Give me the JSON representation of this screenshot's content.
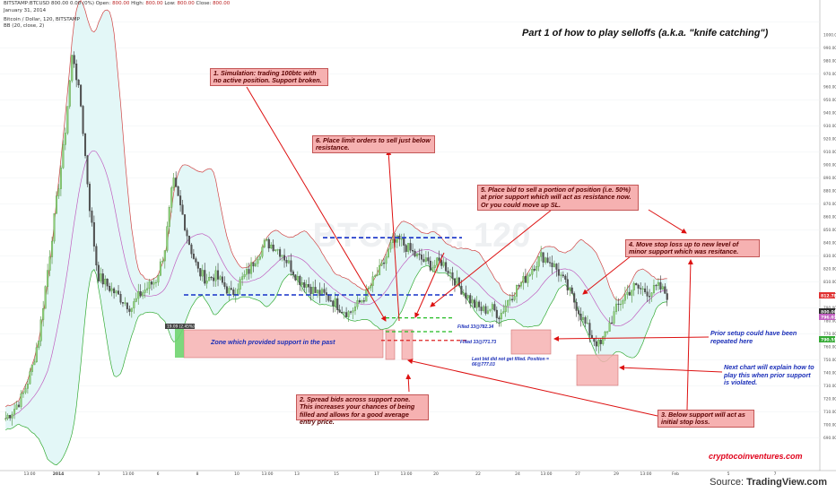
{
  "header": {
    "symbol": "BITSTAMP:BTCUSD",
    "ohlc": "800.00 0.00 (0%)",
    "open_label": "Open:",
    "open": "800.00",
    "high_label": "High:",
    "high": "800.00",
    "low_label": "Low:",
    "low": "800.00",
    "close_label": "Close:",
    "close": "800.00",
    "date": "January 31, 2014",
    "series_line": "Bitcoin / Dollar, 120, BITSTAMP",
    "indicator_line": "BB (20, close, 2)"
  },
  "title": "Part 1 of how to play selloffs (a.k.a. \"knife catching\")",
  "watermark": "BTCUSD, 120",
  "annotations": {
    "a1": "1. Simulation: trading 100btc with no active position. Support broken.",
    "a2": "2. Spread bids across support zone. This increases your chances of being filled and allows for a good average entry price.",
    "a3": "3. Below support will act as initial stop loss.",
    "a4": "4. Move stop loss up to new level of minor support which was resitance.",
    "a5": "5. Place bid to sell a portion of position (i.e. 50%) at prior support which will act as resistance now. Or you could move up SL.",
    "a6": "6. Place limit orders to sell just below resistance."
  },
  "notes": {
    "zone": "Zone which provided support in the past",
    "prior_setup": "Prior setup could have been repeated here",
    "next_chart": "Next chart will explain how to play this when prior support is violated.",
    "filled1": "Filled 33@782.34",
    "filled2": "Filled 33@771.73",
    "unfilled": "Last bid did not get filled.  Position = 66@777.03",
    "badge": "19.09 (2.45%)"
  },
  "site": "cryptocoinventures.com",
  "source_prefix": "Source: ",
  "source_brand": "TradingView.com",
  "colors": {
    "up": "#4a8f3a",
    "down": "#333333",
    "bb_upper": "#d04444",
    "bb_basis": "#c060c0",
    "bb_lower": "#33aa33",
    "band_fill": "#e3f7f7",
    "support_line": "#1530c8",
    "annotation": "#f6b1b1"
  },
  "chart_data": {
    "type": "candlestick",
    "ylim": [
      690,
      1020
    ],
    "ytick_step": 10,
    "x_labels": [
      "13:00",
      "2014",
      "3",
      "13:00",
      "6",
      "8",
      "10",
      "13:00",
      "13",
      "15",
      "17",
      "13:00",
      "20",
      "22",
      "24",
      "13:00",
      "27",
      "29",
      "13:00",
      "Feb",
      "5",
      "7"
    ],
    "price_tags": [
      {
        "value": "812.78",
        "color": "#e03131"
      },
      {
        "value": "800.00",
        "color": "#2a2a2a"
      },
      {
        "value": "796.03",
        "color": "#c060c0"
      },
      {
        "value": "790.55",
        "color": "#33aa33"
      }
    ],
    "levels": {
      "resistance": 844,
      "support": 800,
      "fill1": 782.34,
      "fill2": 771.73,
      "unfilled": 765
    },
    "close_path": [
      705,
      712,
      722,
      740,
      768,
      818,
      868,
      918,
      988,
      945,
      870,
      815,
      808,
      802,
      796,
      790,
      800,
      806,
      812,
      835,
      888,
      865,
      838,
      818,
      812,
      815,
      808,
      800,
      810,
      818,
      830,
      840,
      838,
      832,
      822,
      812,
      808,
      802,
      800,
      796,
      790,
      786,
      792,
      800,
      812,
      822,
      838,
      842,
      836,
      830,
      826,
      822,
      826,
      818,
      808,
      800,
      792,
      788,
      790,
      784,
      796,
      805,
      812,
      822,
      830,
      826,
      818,
      806,
      794,
      780,
      768,
      760,
      776,
      790,
      800,
      806,
      804,
      802,
      806,
      800
    ]
  }
}
